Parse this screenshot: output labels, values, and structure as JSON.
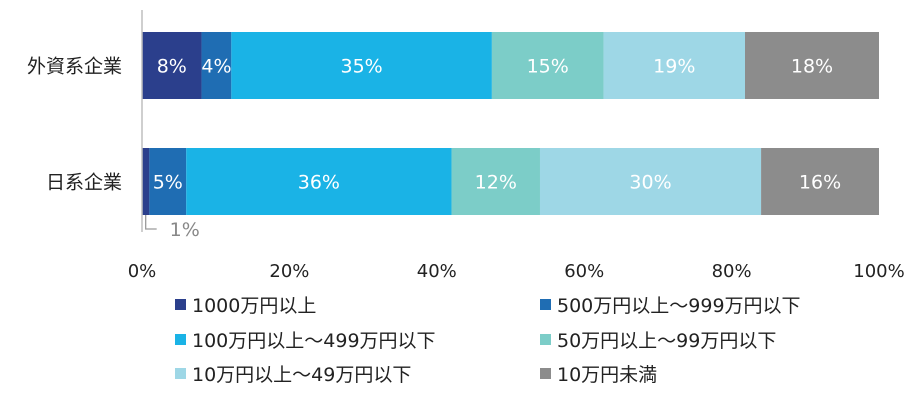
{
  "chart_data": {
    "type": "bar",
    "orientation": "horizontal",
    "stacked": true,
    "percent": true,
    "categories": [
      "外資系企業",
      "日系企業"
    ],
    "series": [
      {
        "name": "1000万円以上",
        "color": "#2b3f8c",
        "values": [
          8,
          1
        ],
        "labels": [
          "8%",
          "1%"
        ]
      },
      {
        "name": "500万円以上～999万円以下",
        "color": "#1f6db3",
        "values": [
          4,
          5
        ],
        "labels": [
          "4%",
          "5%"
        ]
      },
      {
        "name": "100万円以上～499万円以下",
        "color": "#1ab3e6",
        "values": [
          35,
          36
        ],
        "labels": [
          "35%",
          "36%"
        ]
      },
      {
        "name": "50万円以上～99万円以下",
        "color": "#7ccdc8",
        "values": [
          15,
          12
        ],
        "labels": [
          "15%",
          "12%"
        ]
      },
      {
        "name": "10万円以上～49万円以下",
        "color": "#9ed7e6",
        "values": [
          19,
          30
        ],
        "labels": [
          "19%",
          "30%"
        ]
      },
      {
        "name": "10万円未満",
        "color": "#8c8c8c",
        "values": [
          18,
          16
        ],
        "labels": [
          "18%",
          "16%"
        ]
      }
    ],
    "xlim": [
      0,
      100
    ],
    "xticks": [
      "0%",
      "20%",
      "40%",
      "60%",
      "80%",
      "100%"
    ],
    "grid": false,
    "legend_position": "bottom"
  }
}
